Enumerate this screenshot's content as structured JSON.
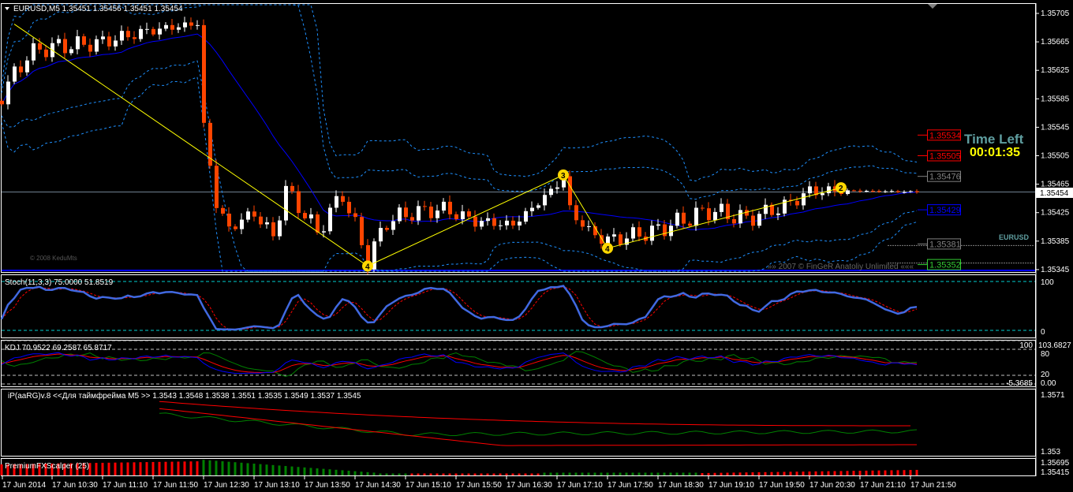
{
  "window": {
    "symbol_header": "EURUSD,M5  1.35451 1.35456 1.35451 1.35454",
    "menu_icon": "triangle-down-icon"
  },
  "main_chart": {
    "price_axis": [
      "1.35705",
      "1.35665",
      "1.35625",
      "1.35585",
      "1.35545",
      "1.35505",
      "1.35465",
      "1.35425",
      "1.35385",
      "1.35345"
    ],
    "current_price": "1.35454",
    "level_labels": [
      {
        "text": "1.35534",
        "color": "#ff0000"
      },
      {
        "text": "1.35505",
        "color": "#ff0000"
      },
      {
        "text": "1.35476",
        "color": "#808080"
      },
      {
        "text": "1.35429",
        "color": "#0000ff"
      },
      {
        "text": "1.35381",
        "color": "#808080"
      },
      {
        "text": "1.35352",
        "color": "#33cc33"
      }
    ],
    "time_left_title": "Time Left",
    "time_left_value": "00:01:35",
    "symbol_watermark": "EURUSD",
    "copyright_left": "© 2008 KeduMts",
    "copyright_right": "»» 2007 © FinGeR Anatoliy Unlimited «««",
    "colors": {
      "bull": "#ffffff",
      "bear": "#ff4500",
      "ma": "#0000ff",
      "bands": "#1e90ff",
      "zigzag": "#ffff00",
      "grid_price": "#708090"
    }
  },
  "chart_data": {
    "type": "candlestick",
    "timeframe": "M5",
    "date": "17 Jun 2014",
    "close_anchors": [
      [
        "09:50",
        1.35591
      ],
      [
        "10:10",
        1.35646
      ],
      [
        "10:25",
        1.35657
      ],
      [
        "11:05",
        1.35663
      ],
      [
        "11:45",
        1.3568
      ],
      [
        "12:25",
        1.35691
      ],
      [
        "12:30",
        1.35547
      ],
      [
        "12:40",
        1.35436
      ],
      [
        "12:50",
        1.35403
      ],
      [
        "13:10",
        1.35425
      ],
      [
        "13:25",
        1.35391
      ],
      [
        "13:35",
        1.35458
      ],
      [
        "14:00",
        1.35398
      ],
      [
        "14:20",
        1.35452
      ],
      [
        "14:40",
        1.35358
      ],
      [
        "14:55",
        1.35413
      ],
      [
        "15:15",
        1.35425
      ],
      [
        "15:40",
        1.3543
      ],
      [
        "16:05",
        1.35413
      ],
      [
        "16:35",
        1.35408
      ],
      [
        "17:00",
        1.35447
      ],
      [
        "17:15",
        1.35475
      ],
      [
        "17:20",
        1.3543
      ],
      [
        "17:35",
        1.35398
      ],
      [
        "17:50",
        1.35386
      ],
      [
        "18:25",
        1.35398
      ],
      [
        "19:10",
        1.35428
      ],
      [
        "19:40",
        1.35416
      ],
      [
        "20:10",
        1.35434
      ],
      [
        "20:30",
        1.35455
      ],
      [
        "20:55",
        1.35456
      ],
      [
        "21:55",
        1.35454
      ]
    ],
    "zigzag": [
      {
        "time": "10:00",
        "price": 1.3569,
        "label": ""
      },
      {
        "time": "14:40",
        "price": 1.3535,
        "label": "4"
      },
      {
        "time": "17:15",
        "price": 1.35478,
        "label": "3"
      },
      {
        "time": "17:50",
        "price": 1.35375,
        "label": "4"
      },
      {
        "time": "20:55",
        "price": 1.3546,
        "label": "2"
      }
    ],
    "time_axis": [
      "17 Jun 2014",
      "17 Jun 10:30",
      "17 Jun 11:10",
      "17 Jun 11:50",
      "17 Jun 12:30",
      "17 Jun 13:10",
      "17 Jun 13:50",
      "17 Jun 14:30",
      "17 Jun 15:10",
      "17 Jun 15:50",
      "17 Jun 16:30",
      "17 Jun 17:10",
      "17 Jun 17:50",
      "17 Jun 18:30",
      "17 Jun 19:10",
      "17 Jun 19:50",
      "17 Jun 20:30",
      "17 Jun 21:10",
      "17 Jun 21:50"
    ]
  },
  "indicators": {
    "stoch": {
      "label": "Stoch(11,3,3) 75.0000 51.8519",
      "axis": [
        "100",
        "0"
      ],
      "levels": [
        90,
        10
      ],
      "colors": {
        "main": "#4169e1",
        "signal": "#ff0000"
      }
    },
    "kdj": {
      "label": "KDJ 70.9522 69.2587 65.8717",
      "axis": [
        "100",
        "103.6827",
        "80",
        "20",
        "0.00",
        "-5.3685"
      ],
      "colors": {
        "k": "#0000ff",
        "d": "#ff0000",
        "j": "#008000"
      }
    },
    "ip": {
      "label": "iP(aaRG)v.8 <<Для таймфрейма M5 >> 1.3543 1.3548 1.3538 1.3551 1.3535 1.3549 1.3537 1.3545",
      "axis": [
        "1.3571",
        "1.353"
      ]
    },
    "scalper": {
      "label": "PremiumFXScalper (25)",
      "axis": [
        "1.35695",
        "1.35415"
      ],
      "colors": {
        "up": "#008000",
        "down": "#ff0000"
      }
    }
  }
}
